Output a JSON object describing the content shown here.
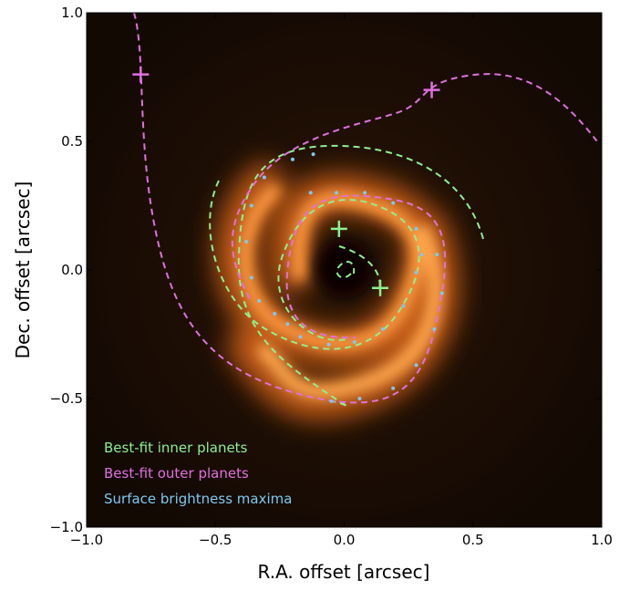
{
  "chart_data": {
    "type": "image-overlay",
    "xlabel": "R.A. offset [arcsec]",
    "ylabel": "Dec. offset [arcsec]",
    "xlim": [
      -1.0,
      1.0
    ],
    "ylim": [
      -1.0,
      1.0
    ],
    "xticks": [
      {
        "value": -1.0,
        "label": "−1.0"
      },
      {
        "value": -0.5,
        "label": "−0.5"
      },
      {
        "value": 0.0,
        "label": "0.0"
      },
      0.5,
      {
        "value": 1.0,
        "label": "1.0"
      }
    ],
    "yticks": [
      {
        "value": -1.0,
        "label": "−1.0"
      },
      {
        "value": -0.5,
        "label": "−0.5"
      },
      {
        "value": 0.0,
        "label": "0.0"
      },
      0.5,
      {
        "value": 1.0,
        "label": "1.0"
      }
    ],
    "series": [
      {
        "name": "Best-fit inner planets",
        "color": "#8ef08e",
        "x": [
          -0.02,
          0.14
        ],
        "values": [
          0.16,
          -0.07
        ]
      },
      {
        "name": "Best-fit outer planets",
        "color": "#e070e0",
        "x": [
          -0.79,
          0.34
        ],
        "values": [
          0.76,
          0.7
        ]
      },
      {
        "name": "Surface brightness maxima",
        "color": "#7ec8f0",
        "x": [
          -0.17,
          -0.06,
          0.04,
          0.15,
          0.23,
          0.28,
          0.3,
          -0.13,
          -0.03,
          0.08,
          0.19,
          0.28,
          0.36,
          0.38,
          0.35,
          0.28,
          0.19,
          0.06,
          -0.05,
          -0.38,
          -0.36,
          -0.33,
          -0.27,
          -0.22,
          -0.36,
          -0.31,
          -0.2,
          -0.12
        ],
        "values": [
          -0.26,
          -0.29,
          -0.28,
          -0.23,
          -0.14,
          -0.01,
          0.06,
          0.3,
          0.3,
          0.3,
          0.26,
          0.16,
          0.06,
          -0.09,
          -0.23,
          -0.37,
          -0.46,
          -0.5,
          -0.51,
          0.11,
          -0.03,
          -0.12,
          -0.17,
          -0.21,
          0.25,
          0.36,
          0.43,
          0.45
        ]
      }
    ]
  }
}
